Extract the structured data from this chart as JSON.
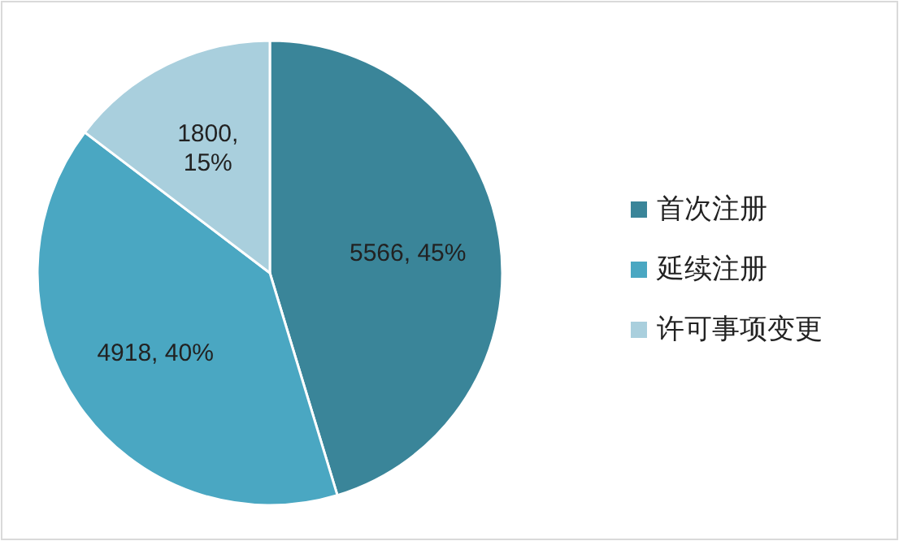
{
  "chart_data": {
    "type": "pie",
    "categories": [
      "首次注册",
      "延续注册",
      "许可事项变更"
    ],
    "values": [
      5566,
      4918,
      1800
    ],
    "value_labels": [
      "5566, 45%",
      "4918, 40%",
      "1800, 15%"
    ],
    "colors": [
      "#3a8599",
      "#4aa7c2",
      "#a9cfdd"
    ],
    "legend": "right"
  }
}
